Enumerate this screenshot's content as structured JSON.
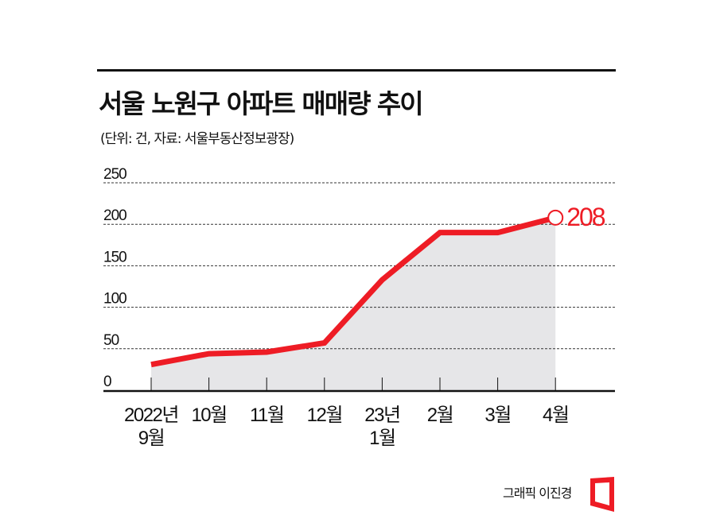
{
  "title": "서울 노원구 아파트 매매량 추이",
  "subtitle": "(단위: 건, 자료: 서울부동산정보광장)",
  "credit": "그래픽 이진경",
  "colors": {
    "line": "#ee1c25",
    "area": "#e6e6e8",
    "grid": "#333333"
  },
  "chart_data": {
    "type": "line",
    "title": "서울 노원구 아파트 매매량 추이",
    "ylabel": "건",
    "categories": [
      [
        "2022년",
        "9월"
      ],
      [
        "10월"
      ],
      [
        "11월"
      ],
      [
        "12월"
      ],
      [
        "23년",
        "1월"
      ],
      [
        "2월"
      ],
      [
        "3월"
      ],
      [
        "4월"
      ]
    ],
    "values": [
      31,
      44,
      46,
      57,
      133,
      190,
      190,
      208
    ],
    "ylim": [
      0,
      250
    ],
    "yticks": [
      "0",
      "50",
      "100",
      "150",
      "200",
      "250"
    ],
    "grid": true,
    "annotation": "208"
  }
}
